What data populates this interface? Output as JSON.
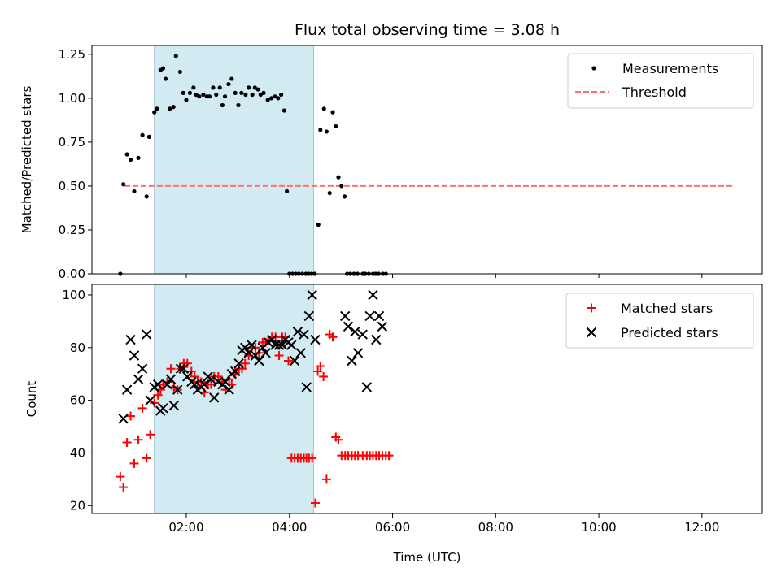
{
  "title": "Flux total observing time = 3.08 h",
  "colors": {
    "measurement": "#000000",
    "threshold": "#ff7070",
    "matched": "#ff0000",
    "predicted": "#000000",
    "span": "#add8e6"
  },
  "chart_data": [
    {
      "type": "scatter",
      "ylabel": "Matched/Predicted stars",
      "xlim": [
        0.17,
        13.17
      ],
      "ylim": [
        0,
        1.3
      ],
      "yticks": [
        0.0,
        0.25,
        0.5,
        0.75,
        1.0,
        1.25
      ],
      "ytick_labels": [
        "0.00",
        "0.25",
        "0.50",
        "0.75",
        "1.00",
        "1.25"
      ],
      "xticks": [
        2,
        4,
        6,
        8,
        10,
        12
      ],
      "observing_span": [
        1.38,
        4.47
      ],
      "legend_position": "upper right",
      "series": [
        {
          "name": "Measurements",
          "marker": "dot",
          "x": [
            0.72,
            0.78,
            0.85,
            0.92,
            0.99,
            1.07,
            1.15,
            1.23,
            1.28,
            1.38,
            1.43,
            1.5,
            1.55,
            1.6,
            1.68,
            1.75,
            1.8,
            1.88,
            1.94,
            2.0,
            2.07,
            2.14,
            2.19,
            2.25,
            2.33,
            2.4,
            2.45,
            2.52,
            2.58,
            2.65,
            2.7,
            2.75,
            2.82,
            2.88,
            2.95,
            3.01,
            3.07,
            3.15,
            3.21,
            3.28,
            3.33,
            3.39,
            3.44,
            3.5,
            3.58,
            3.65,
            3.72,
            3.78,
            3.84,
            3.9,
            3.95,
            4.0,
            4.06,
            4.12,
            4.18,
            4.25,
            4.32,
            4.37,
            4.43,
            4.49,
            4.56,
            4.6,
            4.67,
            4.72,
            4.78,
            4.84,
            4.9,
            4.95,
            5.01,
            5.07,
            5.12,
            5.18,
            5.25,
            5.32,
            5.42,
            5.47,
            5.54,
            5.62,
            5.67,
            5.73,
            5.81,
            5.87
          ],
          "y": [
            0.0,
            0.51,
            0.68,
            0.65,
            0.47,
            0.66,
            0.79,
            0.44,
            0.78,
            0.92,
            0.94,
            1.16,
            1.17,
            1.11,
            0.94,
            0.95,
            1.24,
            1.15,
            1.03,
            0.99,
            1.03,
            1.06,
            1.02,
            1.01,
            1.02,
            1.01,
            1.01,
            1.06,
            1.02,
            1.06,
            0.96,
            1.01,
            1.08,
            1.11,
            1.03,
            0.96,
            1.03,
            1.02,
            1.06,
            1.02,
            1.06,
            1.05,
            1.02,
            1.03,
            0.99,
            1.0,
            1.01,
            1.0,
            1.02,
            0.93,
            0.47,
            0.0,
            0.0,
            0.0,
            0.0,
            0.0,
            0.0,
            0.0,
            0.0,
            0.0,
            0.28,
            0.82,
            0.94,
            0.81,
            0.46,
            0.92,
            0.84,
            0.55,
            0.5,
            0.44,
            0.0,
            0.0,
            0.0,
            0.0,
            0.0,
            0.0,
            0.0,
            0.0,
            0.0,
            0.0,
            0.0,
            0.0
          ]
        },
        {
          "name": "Threshold",
          "marker": "dashed-line",
          "x": [
            0.8,
            12.6
          ],
          "y": [
            0.5,
            0.5
          ]
        }
      ]
    },
    {
      "type": "scatter",
      "xlabel": "Time (UTC)",
      "ylabel": "Count",
      "xlim": [
        0.17,
        13.17
      ],
      "ylim": [
        17,
        104
      ],
      "yticks": [
        20,
        40,
        60,
        80,
        100
      ],
      "xticks": [
        2,
        4,
        6,
        8,
        10,
        12
      ],
      "xtick_labels": [
        "02:00",
        "04:00",
        "06:00",
        "08:00",
        "10:00",
        "12:00"
      ],
      "observing_span": [
        1.38,
        4.47
      ],
      "legend_position": "upper right",
      "series": [
        {
          "name": "Matched stars",
          "marker": "plus",
          "x": [
            0.72,
            0.78,
            0.85,
            0.92,
            0.99,
            1.07,
            1.15,
            1.23,
            1.3,
            1.38,
            1.45,
            1.5,
            1.55,
            1.63,
            1.7,
            1.76,
            1.83,
            1.89,
            1.95,
            2.02,
            2.1,
            2.16,
            2.22,
            2.29,
            2.35,
            2.42,
            2.48,
            2.54,
            2.62,
            2.7,
            2.76,
            2.83,
            2.88,
            2.95,
            3.02,
            3.08,
            3.14,
            3.21,
            3.27,
            3.34,
            3.41,
            3.48,
            3.54,
            3.59,
            3.66,
            3.73,
            3.8,
            3.86,
            3.92,
            3.98,
            4.04,
            4.1,
            4.16,
            4.22,
            4.28,
            4.33,
            4.38,
            4.44,
            4.5,
            4.55,
            4.6,
            4.66,
            4.72,
            4.78,
            4.84,
            4.9,
            4.95,
            5.01,
            5.08,
            5.14,
            5.21,
            5.27,
            5.33,
            5.42,
            5.5,
            5.56,
            5.62,
            5.68,
            5.74,
            5.8,
            5.87,
            5.93
          ],
          "y": [
            31,
            27,
            44,
            54,
            36,
            45,
            57,
            38,
            47,
            59,
            62,
            64,
            66,
            67,
            72,
            65,
            64,
            72,
            74,
            74,
            71,
            69,
            67,
            67,
            63,
            66,
            66,
            69,
            69,
            67,
            64,
            68,
            66,
            70,
            72,
            72,
            74,
            77,
            80,
            80,
            78,
            82,
            82,
            83,
            84,
            84,
            77,
            84,
            84,
            75,
            38,
            38,
            38,
            38,
            38,
            38,
            38,
            38,
            21,
            71,
            73,
            69,
            30,
            85,
            84,
            46,
            45,
            39,
            39,
            39,
            39,
            39,
            39,
            39,
            39,
            39,
            39,
            39,
            39,
            39,
            39,
            39
          ]
        },
        {
          "name": "Predicted stars",
          "marker": "x",
          "x": [
            0.78,
            0.85,
            0.92,
            0.99,
            1.07,
            1.15,
            1.23,
            1.3,
            1.38,
            1.45,
            1.5,
            1.55,
            1.63,
            1.7,
            1.76,
            1.83,
            1.89,
            1.95,
            2.02,
            2.1,
            2.16,
            2.22,
            2.29,
            2.35,
            2.42,
            2.48,
            2.54,
            2.62,
            2.7,
            2.76,
            2.83,
            2.88,
            2.95,
            3.02,
            3.08,
            3.14,
            3.21,
            3.27,
            3.34,
            3.41,
            3.48,
            3.54,
            3.59,
            3.66,
            3.73,
            3.8,
            3.86,
            3.92,
            3.98,
            4.04,
            4.1,
            4.16,
            4.22,
            4.28,
            4.33,
            4.38,
            4.44,
            4.5,
            5.08,
            5.14,
            5.21,
            5.27,
            5.33,
            5.42,
            5.5,
            5.56,
            5.62,
            5.68,
            5.74,
            5.8
          ],
          "y": [
            53,
            64,
            83,
            77,
            68,
            72,
            85,
            60,
            65,
            66,
            56,
            57,
            66,
            68,
            58,
            64,
            72,
            72,
            69,
            67,
            66,
            64,
            65,
            66,
            69,
            68,
            61,
            67,
            66,
            67,
            64,
            70,
            71,
            74,
            79,
            80,
            78,
            81,
            77,
            75,
            80,
            78,
            82,
            83,
            81,
            81,
            81,
            83,
            82,
            81,
            75,
            86,
            78,
            85,
            65,
            92,
            100,
            83,
            92,
            88,
            75,
            86,
            78,
            85,
            65,
            92,
            100,
            83,
            92,
            88
          ]
        }
      ]
    }
  ]
}
